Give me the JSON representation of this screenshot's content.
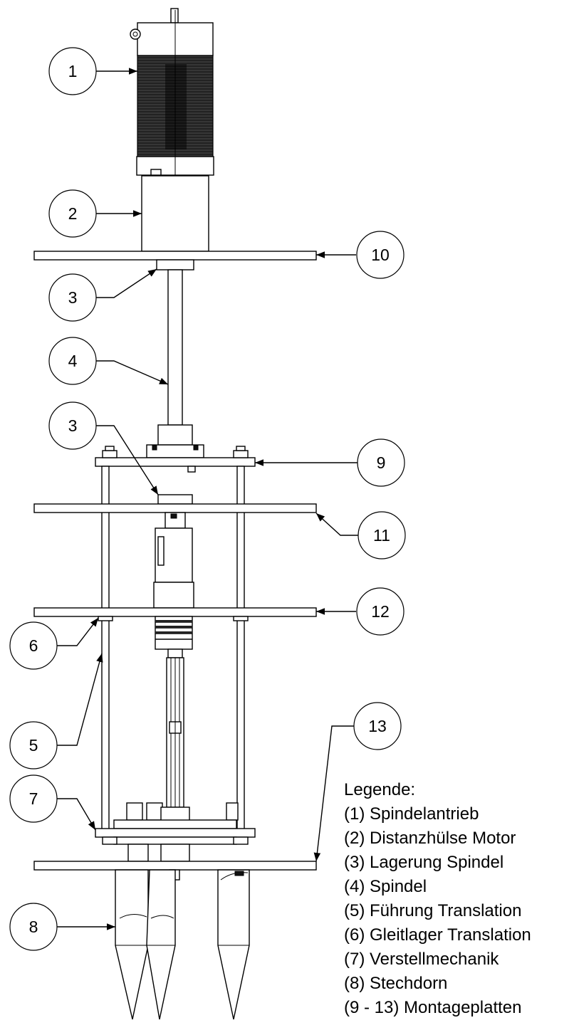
{
  "callouts": {
    "c1": "1",
    "c2": "2",
    "c3a": "3",
    "c3b": "3",
    "c4": "4",
    "c5": "5",
    "c6": "6",
    "c7": "7",
    "c8": "8",
    "c9": "9",
    "c10": "10",
    "c11": "11",
    "c12": "12",
    "c13": "13"
  },
  "legend": {
    "title": "Legende:",
    "items": [
      "(1) Spindelantrieb",
      "(2) Distanzhülse Motor",
      "(3) Lagerung Spindel",
      "(4) Spindel",
      "(5) Führung Translation",
      "(6) Gleitlager Translation",
      "(7) Verstellmechanik",
      "(8) Stechdorn",
      "(9 - 13) Montageplatten"
    ]
  }
}
